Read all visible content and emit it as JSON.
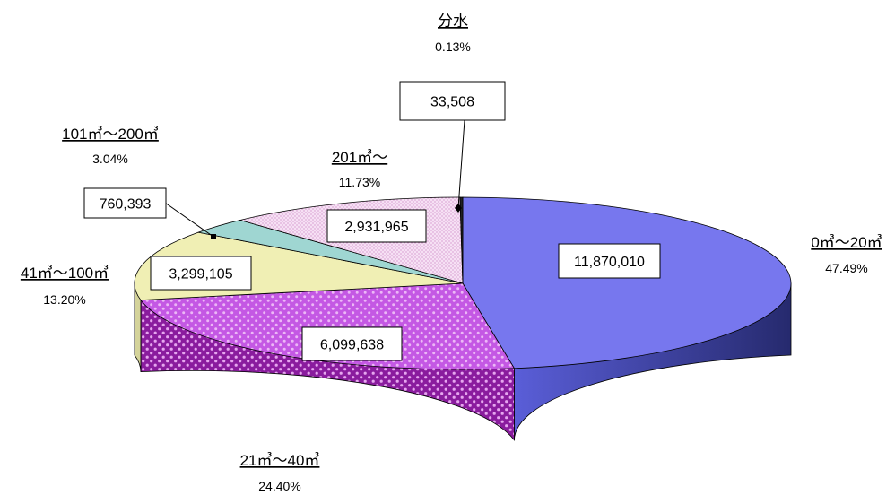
{
  "chart_data": {
    "type": "pie",
    "style": "3d",
    "slices": [
      {
        "label": "0㎥～20㎥",
        "value": 11870010,
        "value_label": "11,870,010",
        "percent": "47.49%",
        "color": "#7777ee",
        "pattern": "solid"
      },
      {
        "label": "21㎥～40㎥",
        "value": 6099638,
        "value_label": "6,099,638",
        "percent": "24.40%",
        "color": "#bb44dd",
        "pattern": "dots"
      },
      {
        "label": "41㎥～100㎥",
        "value": 3299105,
        "value_label": "3,299,105",
        "percent": "13.20%",
        "color": "#f0efb4",
        "pattern": "solid"
      },
      {
        "label": "101㎥～200㎥",
        "value": 760393,
        "value_label": "760,393",
        "percent": "3.04%",
        "color": "#9fd6d2",
        "pattern": "solid"
      },
      {
        "label": "201㎥～",
        "value": 2931965,
        "value_label": "2,931,965",
        "percent": "11.73%",
        "color": "#f2d0ee",
        "pattern": "fine-dots"
      },
      {
        "label": "分水",
        "value": 33508,
        "value_label": "33,508",
        "percent": "0.13%",
        "color": "#222222",
        "pattern": "solid"
      }
    ]
  }
}
